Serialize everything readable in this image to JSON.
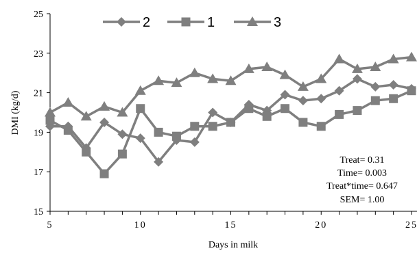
{
  "chart_data": {
    "type": "line",
    "title": "",
    "xlabel": "Days in milk",
    "ylabel": "DMI (kg/d)",
    "xlim": [
      5,
      25
    ],
    "ylim": [
      15,
      25
    ],
    "x_ticks": [
      5,
      10,
      15,
      20,
      25
    ],
    "x_tick_labels": [
      "5",
      "10",
      "15",
      "20",
      "25"
    ],
    "y_ticks": [
      15,
      17,
      19,
      21,
      23,
      25
    ],
    "y_tick_labels": [
      "15",
      "17",
      "19",
      "21",
      "23",
      "25"
    ],
    "grid": false,
    "legend_position": "top",
    "line_color": "#7f7f7f",
    "x": [
      5,
      6,
      7,
      8,
      9,
      10,
      11,
      12,
      13,
      14,
      15,
      16,
      17,
      18,
      19,
      20,
      21,
      22,
      23,
      24,
      25
    ],
    "series": [
      {
        "name": "2",
        "marker": "diamond",
        "values": [
          19.3,
          19.3,
          18.2,
          19.5,
          18.9,
          18.7,
          17.5,
          18.6,
          18.5,
          20.0,
          19.5,
          20.4,
          20.1,
          20.9,
          20.6,
          20.7,
          21.1,
          21.7,
          21.3,
          21.4,
          21.2
        ]
      },
      {
        "name": "1",
        "marker": "square",
        "values": [
          19.6,
          19.1,
          18.0,
          16.9,
          17.9,
          20.2,
          19.0,
          18.8,
          19.3,
          19.3,
          19.5,
          20.2,
          19.8,
          20.2,
          19.5,
          19.3,
          19.9,
          20.1,
          20.6,
          20.7,
          21.1
        ]
      },
      {
        "name": "3",
        "marker": "triangle",
        "values": [
          20.0,
          20.5,
          19.8,
          20.3,
          20.0,
          21.1,
          21.6,
          21.5,
          22.0,
          21.7,
          21.6,
          22.2,
          22.3,
          21.9,
          21.3,
          21.7,
          22.7,
          22.2,
          22.3,
          22.7,
          22.8
        ]
      }
    ],
    "annotations": [
      "Treat= 0.31",
      "Time= 0.003",
      "Treat*time= 0.647",
      "SEM= 1.00"
    ]
  }
}
